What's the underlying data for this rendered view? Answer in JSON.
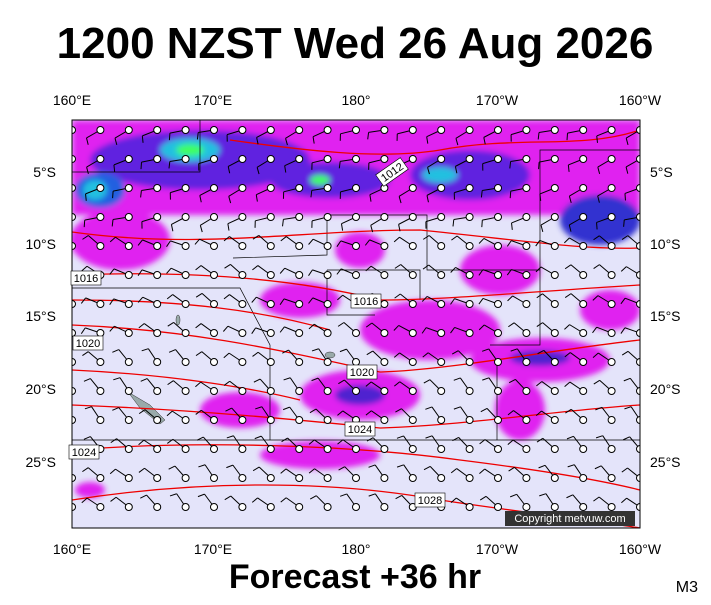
{
  "header": {
    "title": "1200 NZST Wed 26 Aug 2026"
  },
  "map": {
    "top_labels": [
      "160°E",
      "170°E",
      "180°",
      "170°W",
      "160°W"
    ],
    "bottom_labels": [
      "160°E",
      "170°E",
      "180°",
      "170°W",
      "160°W"
    ],
    "left_labels": [
      "5°S",
      "10°S",
      "15°S",
      "20°S",
      "25°S"
    ],
    "right_labels": [
      "5°S",
      "10°S",
      "15°S",
      "20°S",
      "25°S"
    ],
    "isobar_labels": [
      "1012",
      "1016",
      "1016",
      "1020",
      "1020",
      "1024",
      "1024",
      "1028"
    ],
    "copyright": "Copyright metvuw.com"
  },
  "footer": {
    "forecast": "Forecast +36 hr",
    "code": "M3"
  }
}
